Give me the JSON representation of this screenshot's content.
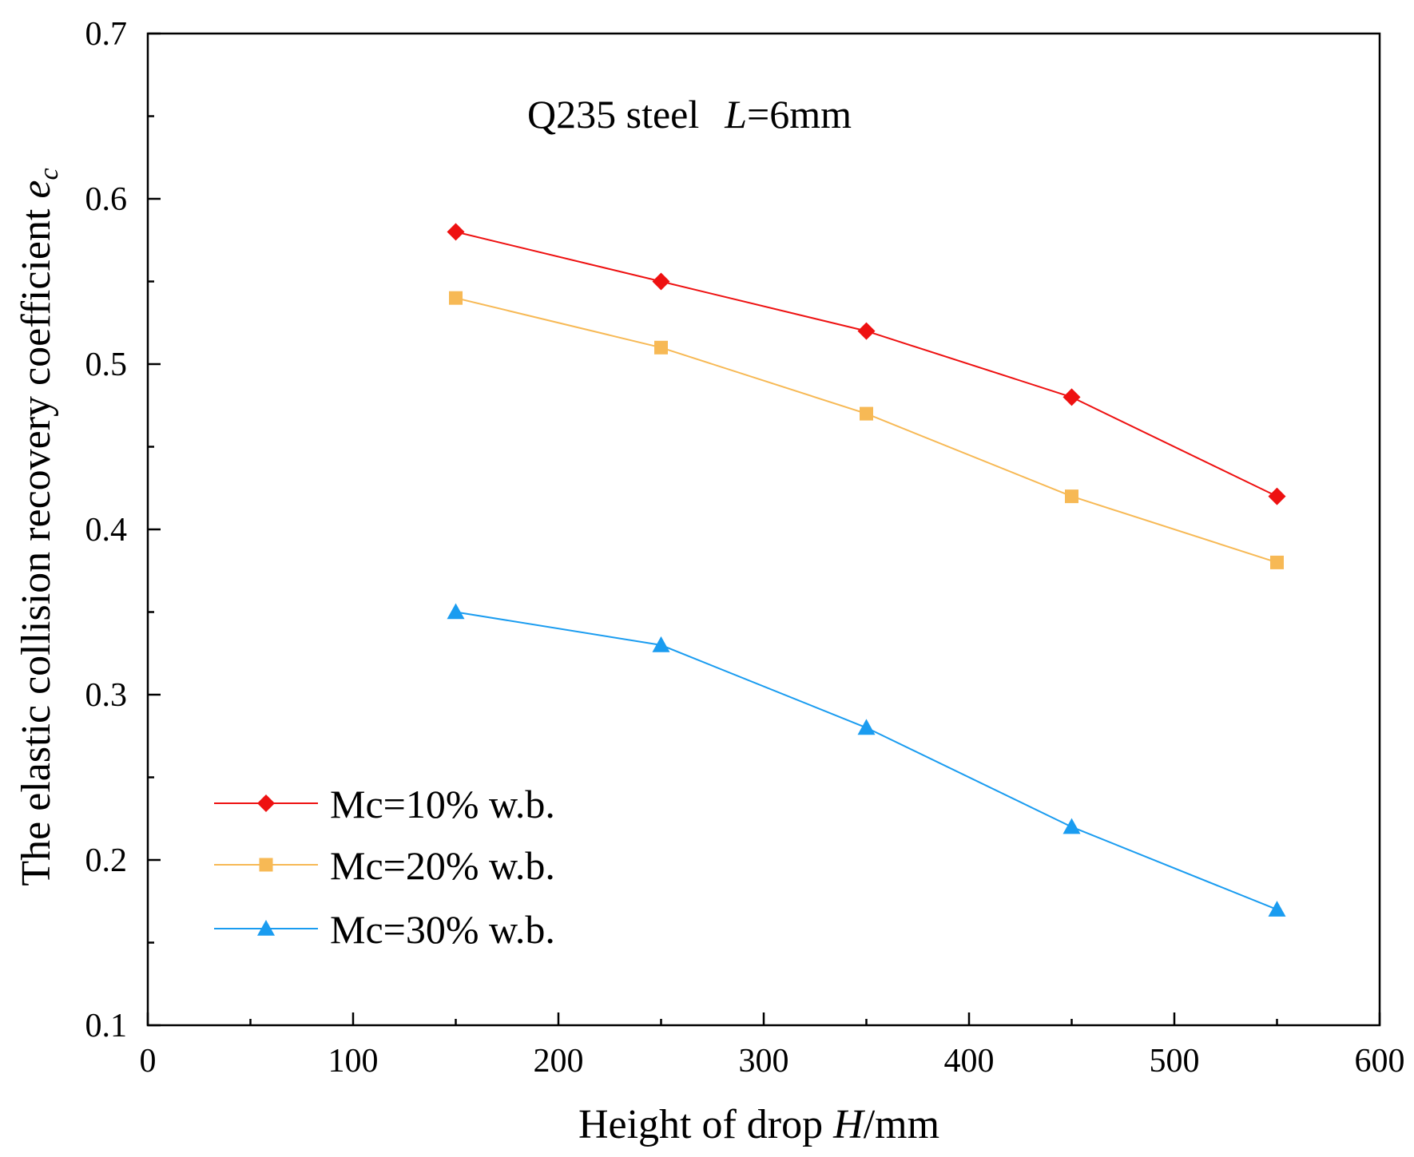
{
  "chart_data": {
    "type": "line",
    "title": "",
    "annotation": {
      "prefix": "Q235 steel",
      "var": "L",
      "rest": "=6mm"
    },
    "xlabel": {
      "prefix": "Height of drop ",
      "var": "H",
      "rest": "/mm"
    },
    "ylabel": {
      "prefix": "The elastic collision recovery coefficient ",
      "var": "e",
      "sub": "c"
    },
    "xlim": [
      0,
      600
    ],
    "ylim": [
      0.1,
      0.7
    ],
    "xticks": [
      0,
      100,
      200,
      300,
      400,
      500,
      600
    ],
    "xtick_labels": [
      "0",
      "100",
      "200",
      "300",
      "400",
      "500",
      "600"
    ],
    "yticks": [
      0.1,
      0.2,
      0.3,
      0.4,
      0.5,
      0.6,
      0.7
    ],
    "ytick_labels": [
      "0.1",
      "0.2",
      "0.3",
      "0.4",
      "0.5",
      "0.6",
      "0.7"
    ],
    "grid": false,
    "legend_position": "bottom-left",
    "x": [
      150,
      250,
      350,
      450,
      550
    ],
    "series": [
      {
        "name": "Mc=10% w.b.",
        "values": [
          0.58,
          0.55,
          0.52,
          0.48,
          0.42
        ],
        "color": "#ee1111",
        "marker": "diamond"
      },
      {
        "name": "Mc=20% w.b.",
        "values": [
          0.54,
          0.51,
          0.47,
          0.42,
          0.38
        ],
        "color": "#f7b955",
        "marker": "square"
      },
      {
        "name": "Mc=30% w.b.",
        "values": [
          0.35,
          0.33,
          0.28,
          0.22,
          0.17
        ],
        "color": "#1a9cf0",
        "marker": "triangle"
      }
    ]
  }
}
